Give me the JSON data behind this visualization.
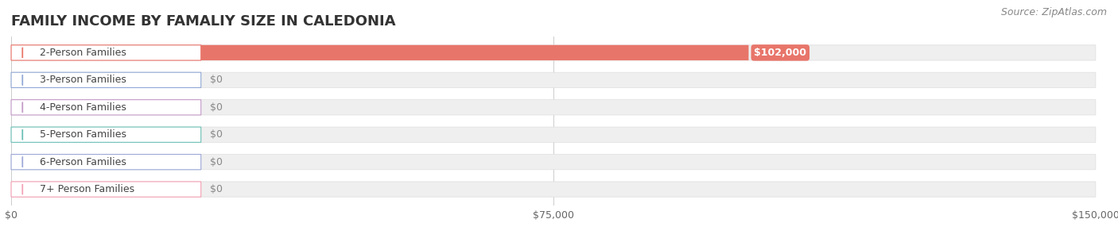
{
  "title": "FAMILY INCOME BY FAMALIY SIZE IN CALEDONIA",
  "source": "Source: ZipAtlas.com",
  "categories": [
    "2-Person Families",
    "3-Person Families",
    "4-Person Families",
    "5-Person Families",
    "6-Person Families",
    "7+ Person Families"
  ],
  "values": [
    102000,
    0,
    0,
    0,
    0,
    0
  ],
  "bar_colors": [
    "#E8756A",
    "#90A8D4",
    "#C49AC8",
    "#6BBFB5",
    "#9DA8D8",
    "#F4A0B5"
  ],
  "label_colors": [
    "#E8756A",
    "#90A8D4",
    "#C49AC8",
    "#6BBFB5",
    "#9DA8D8",
    "#F4A0B5"
  ],
  "value_labels": [
    "$102,000",
    "$0",
    "$0",
    "$0",
    "$0",
    "$0"
  ],
  "xlim": [
    0,
    150000
  ],
  "xticks": [
    0,
    75000,
    150000
  ],
  "xticklabels": [
    "$0",
    "$75,000",
    "$150,000"
  ],
  "background_color": "#ffffff",
  "bar_bg_color": "#eeeeee",
  "title_fontsize": 13,
  "label_fontsize": 9,
  "value_fontsize": 9,
  "source_fontsize": 9
}
